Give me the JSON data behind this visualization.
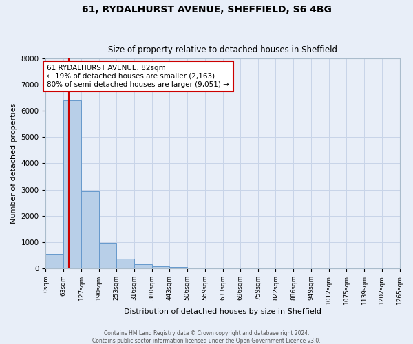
{
  "title": "61, RYDALHURST AVENUE, SHEFFIELD, S6 4BG",
  "subtitle": "Size of property relative to detached houses in Sheffield",
  "xlabel": "Distribution of detached houses by size in Sheffield",
  "ylabel": "Number of detached properties",
  "bin_edges": [
    0,
    63,
    127,
    190,
    253,
    316,
    380,
    443,
    506,
    569,
    633,
    696,
    759,
    822,
    886,
    949,
    1012,
    1075,
    1139,
    1202,
    1265
  ],
  "bin_labels": [
    "0sqm",
    "63sqm",
    "127sqm",
    "190sqm",
    "253sqm",
    "316sqm",
    "380sqm",
    "443sqm",
    "506sqm",
    "569sqm",
    "633sqm",
    "696sqm",
    "759sqm",
    "822sqm",
    "886sqm",
    "949sqm",
    "1012sqm",
    "1075sqm",
    "1139sqm",
    "1202sqm",
    "1265sqm"
  ],
  "bar_heights": [
    550,
    6400,
    2940,
    970,
    380,
    165,
    75,
    50,
    0,
    0,
    0,
    0,
    0,
    0,
    0,
    0,
    0,
    0,
    0,
    0
  ],
  "bar_color": "#b8cfe8",
  "bar_edgecolor": "#6699cc",
  "property_line_x": 82,
  "property_line_color": "#cc0000",
  "annotation_text": "61 RYDALHURST AVENUE: 82sqm\n← 19% of detached houses are smaller (2,163)\n80% of semi-detached houses are larger (9,051) →",
  "annotation_box_color": "#cc0000",
  "ylim": [
    0,
    8000
  ],
  "yticks": [
    0,
    1000,
    2000,
    3000,
    4000,
    5000,
    6000,
    7000,
    8000
  ],
  "grid_color": "#c8d4e8",
  "background_color": "#e8eef8",
  "footer_line1": "Contains HM Land Registry data © Crown copyright and database right 2024.",
  "footer_line2": "Contains public sector information licensed under the Open Government Licence v3.0."
}
